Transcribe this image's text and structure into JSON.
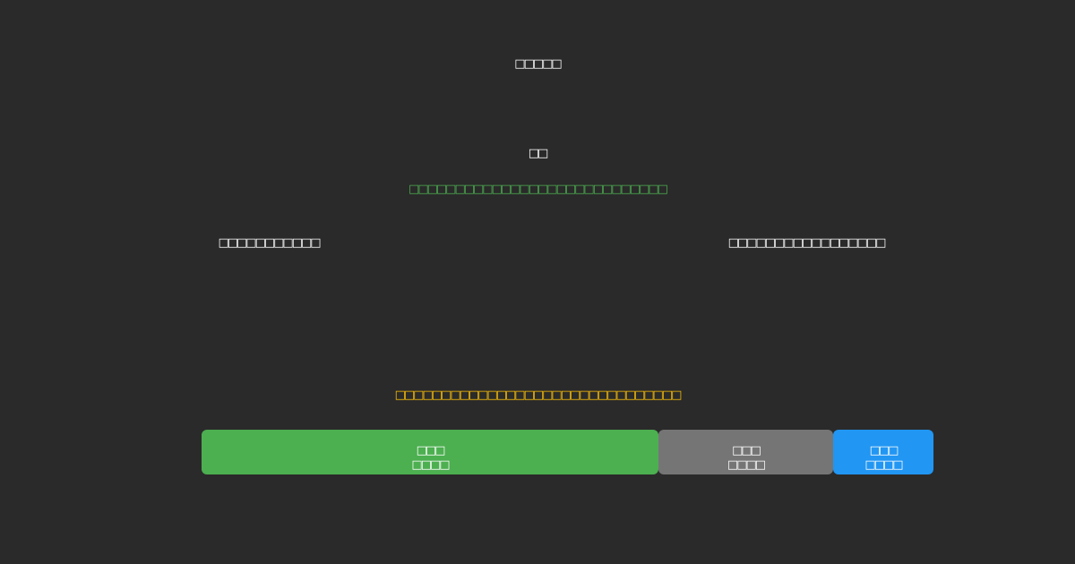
{
  "header": {
    "title": "□□□□□"
  },
  "main": {
    "heading": "□□",
    "status_message": "□□□□□□□□□□□□□□□□□□□□□□□□□□□□",
    "left_label": "□□□□□□□□□□□",
    "right_label": "□□□□□□□□□□□□□□□□□",
    "warning_message": "□□□□□□□□□□□□□□□□□□□□□□□□□□□□□□□"
  },
  "buttons": [
    {
      "line1": "□□□",
      "line2": "□□□□",
      "color": "#4caf50"
    },
    {
      "line1": "□□□",
      "line2": "□□□□",
      "color": "#757575"
    },
    {
      "line1": "□□□",
      "line2": "□□□□",
      "color": "#2196f3"
    }
  ],
  "colors": {
    "background": "#2a2a2a",
    "status": "#4caf50",
    "warning": "#ffc107"
  }
}
